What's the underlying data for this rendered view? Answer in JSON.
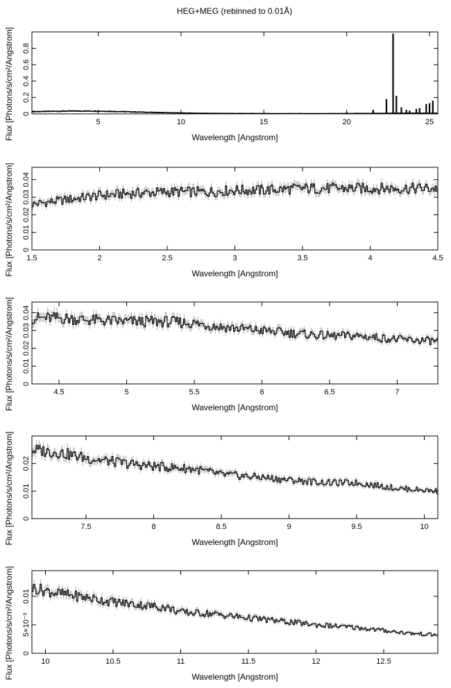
{
  "title": "HEG+MEG (rebinned to 0.01Å)",
  "chart_data": [
    {
      "type": "line",
      "xlabel": "Wavelength [Angstrom]",
      "ylabel": "Flux [Photons/s/cm²/Angstrom]",
      "xlim": [
        1.0,
        25.5
      ],
      "ylim": [
        0.0,
        1.0
      ],
      "xticks": [
        5,
        10,
        15,
        20,
        25
      ],
      "yticks": [
        0,
        0.2,
        0.4,
        0.6,
        0.8
      ],
      "ytick_labels": [
        "0",
        "0.2",
        "0.4",
        "0.6",
        "0.8"
      ],
      "series": [
        {
          "x": [
            1.5,
            2.5,
            3.5,
            4.5,
            5.5,
            6.5,
            7.5,
            8.5,
            9.5,
            10.5,
            11.5,
            12.5,
            13.5,
            14.5,
            15.5,
            16.5,
            17.5,
            18.5,
            19.5,
            20.5,
            21.5,
            22.0,
            22.5
          ],
          "y": [
            0.028,
            0.032,
            0.034,
            0.034,
            0.032,
            0.027,
            0.022,
            0.017,
            0.013,
            0.009,
            0.007,
            0.006,
            0.005,
            0.005,
            0.004,
            0.004,
            0.004,
            0.004,
            0.004,
            0.005,
            0.006,
            0.006,
            0.008
          ]
        }
      ],
      "lines": [
        {
          "x": 20.0,
          "y": 0.02
        },
        {
          "x": 20.6,
          "y": 0.015
        },
        {
          "x": 21.6,
          "y": 0.05
        },
        {
          "x": 22.4,
          "y": 0.18
        },
        {
          "x": 22.8,
          "y": 0.98
        },
        {
          "x": 23.0,
          "y": 0.22
        },
        {
          "x": 23.3,
          "y": 0.08
        },
        {
          "x": 23.6,
          "y": 0.05
        },
        {
          "x": 23.8,
          "y": 0.04
        },
        {
          "x": 24.2,
          "y": 0.06
        },
        {
          "x": 24.4,
          "y": 0.07
        },
        {
          "x": 24.8,
          "y": 0.12
        },
        {
          "x": 25.0,
          "y": 0.13
        },
        {
          "x": 25.2,
          "y": 0.16
        }
      ]
    },
    {
      "type": "line",
      "xlabel": "Wavelength [Angstrom]",
      "ylabel": "Flux [Photons/s/cm²/Angstrom]",
      "xlim": [
        1.5,
        4.5
      ],
      "ylim": [
        0.0,
        0.047
      ],
      "xticks": [
        1.5,
        2,
        2.5,
        3,
        3.5,
        4,
        4.5
      ],
      "yticks": [
        0,
        0.01,
        0.02,
        0.03,
        0.04
      ],
      "ytick_labels": [
        "0",
        "0.01",
        "0.02",
        "0.03",
        "0.04"
      ],
      "series": [
        {
          "x": [
            1.5,
            1.6,
            1.7,
            1.8,
            1.9,
            2.0,
            2.2,
            2.5,
            2.8,
            3.0,
            3.2,
            3.5,
            3.8,
            4.0,
            4.2,
            4.5
          ],
          "y": [
            0.026,
            0.027,
            0.028,
            0.029,
            0.03,
            0.031,
            0.032,
            0.033,
            0.033,
            0.034,
            0.034,
            0.035,
            0.035,
            0.035,
            0.035,
            0.035
          ]
        }
      ]
    },
    {
      "type": "line",
      "xlabel": "Wavelength [Angstrom]",
      "ylabel": "Flux [Photons/s/cm²/Angstrom]",
      "xlim": [
        4.3,
        7.3
      ],
      "ylim": [
        0.0,
        0.046
      ],
      "xticks": [
        4.5,
        5,
        5.5,
        6,
        6.5,
        7
      ],
      "yticks": [
        0,
        0.01,
        0.02,
        0.03,
        0.04
      ],
      "ytick_labels": [
        "0",
        "0.01",
        "0.02",
        "0.03",
        "0.04"
      ],
      "series": [
        {
          "x": [
            4.3,
            4.5,
            4.7,
            5.0,
            5.3,
            5.5,
            5.7,
            6.0,
            6.3,
            6.5,
            6.7,
            7.0,
            7.3
          ],
          "y": [
            0.037,
            0.037,
            0.036,
            0.035,
            0.035,
            0.034,
            0.032,
            0.03,
            0.028,
            0.027,
            0.027,
            0.025,
            0.024
          ]
        }
      ]
    },
    {
      "type": "line",
      "xlabel": "Wavelength [Angstrom]",
      "ylabel": "Flux [Photons/s/cm²/Angstrom]",
      "xlim": [
        7.1,
        10.1
      ],
      "ylim": [
        0.0,
        0.03
      ],
      "xticks": [
        7.5,
        8,
        8.5,
        9,
        9.5,
        10
      ],
      "yticks": [
        0,
        0.01,
        0.02
      ],
      "ytick_labels": [
        "0",
        "0.01",
        "0.02"
      ],
      "series": [
        {
          "x": [
            7.1,
            7.3,
            7.5,
            7.8,
            8.0,
            8.3,
            8.5,
            8.8,
            9.0,
            9.3,
            9.5,
            9.8,
            10.1
          ],
          "y": [
            0.025,
            0.024,
            0.022,
            0.02,
            0.019,
            0.018,
            0.016,
            0.015,
            0.014,
            0.013,
            0.013,
            0.011,
            0.01
          ]
        }
      ]
    },
    {
      "type": "line",
      "xlabel": "Wavelength [Angstrom]",
      "ylabel": "Flux [Photons/s/cm²/Angstrom]",
      "xlim": [
        9.9,
        12.9
      ],
      "ylim": [
        0.0,
        0.0145
      ],
      "xticks": [
        10,
        10.5,
        11,
        11.5,
        12,
        12.5
      ],
      "yticks": [
        0,
        0.005,
        0.01
      ],
      "ytick_labels": [
        "0",
        "5×10⁻³",
        "0.01"
      ],
      "series": [
        {
          "x": [
            9.9,
            10.0,
            10.1,
            10.3,
            10.5,
            10.7,
            10.9,
            11.0,
            11.2,
            11.5,
            11.8,
            12.0,
            12.3,
            12.5,
            12.7,
            12.9
          ],
          "y": [
            0.0115,
            0.011,
            0.0105,
            0.0098,
            0.009,
            0.0085,
            0.008,
            0.0072,
            0.007,
            0.0062,
            0.0055,
            0.005,
            0.0045,
            0.004,
            0.0035,
            0.0032
          ]
        }
      ]
    }
  ]
}
